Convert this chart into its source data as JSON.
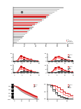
{
  "n_bars": 24,
  "bar_gray": [
    9.2,
    8.5,
    8.0,
    7.6,
    7.2,
    6.8,
    6.4,
    6.0,
    5.6,
    5.2,
    4.8,
    4.4,
    4.0,
    3.7,
    3.4,
    3.1,
    2.8,
    2.5,
    2.2,
    1.9,
    1.6,
    1.3,
    1.0,
    0.7
  ],
  "bar_red": [
    0,
    0,
    0,
    0,
    0,
    6.5,
    6.0,
    0,
    5.3,
    0,
    4.5,
    4.0,
    3.5,
    0,
    3.0,
    0,
    2.5,
    0,
    0,
    0,
    0,
    0,
    0,
    0
  ],
  "bar_diamond_idx": [
    3
  ],
  "bar_diamond_val": [
    1.5
  ],
  "line_days": [
    0,
    2,
    4,
    6,
    8,
    10,
    12,
    14
  ],
  "line1_red": [
    0.05,
    1.0,
    7.5,
    5.5,
    3.8,
    2.2,
    1.2,
    0.6
  ],
  "line1_pink": [
    0.05,
    0.7,
    4.5,
    3.5,
    2.5,
    1.6,
    1.0,
    0.5
  ],
  "line1_black": [
    0.05,
    0.2,
    0.7,
    1.4,
    1.1,
    0.8,
    0.5,
    0.25
  ],
  "line1_gray": [
    0.05,
    0.15,
    0.45,
    0.85,
    0.75,
    0.55,
    0.35,
    0.18
  ],
  "line2_red": [
    0.05,
    0.7,
    5.0,
    6.5,
    4.8,
    2.8,
    1.6,
    0.8
  ],
  "line2_pink": [
    0.05,
    0.5,
    3.5,
    5.0,
    3.7,
    2.2,
    1.3,
    0.65
  ],
  "line2_black": [
    0.05,
    0.18,
    0.55,
    1.1,
    1.6,
    1.35,
    0.9,
    0.45
  ],
  "line2_gray": [
    0.05,
    0.13,
    0.38,
    0.72,
    1.1,
    0.9,
    0.62,
    0.3
  ],
  "line3_red": [
    0.05,
    1.3,
    8.5,
    6.5,
    4.5,
    2.7,
    1.6,
    0.8
  ],
  "line3_pink": [
    0.05,
    0.9,
    5.5,
    4.6,
    3.2,
    2.0,
    1.2,
    0.6
  ],
  "line3_black": [
    0.05,
    0.22,
    0.9,
    1.85,
    1.5,
    1.0,
    0.65,
    0.32
  ],
  "line3_gray": [
    0.05,
    0.16,
    0.55,
    1.0,
    0.88,
    0.65,
    0.42,
    0.2
  ],
  "line4_red": [
    0.05,
    0.9,
    6.5,
    8.0,
    5.5,
    3.2,
    1.85,
    0.92
  ],
  "line4_pink": [
    0.05,
    0.62,
    4.6,
    6.0,
    4.2,
    2.6,
    1.5,
    0.75
  ],
  "line4_black": [
    0.05,
    0.2,
    0.65,
    1.4,
    2.05,
    1.65,
    1.1,
    0.55
  ],
  "line4_gray": [
    0.05,
    0.14,
    0.42,
    0.88,
    1.4,
    1.1,
    0.75,
    0.37
  ],
  "scatter_x": [
    0,
    2,
    5,
    7,
    10,
    15,
    20,
    25,
    30
  ],
  "scatter_red_lines": [
    [
      1000,
      800,
      400,
      180,
      60,
      15,
      4,
      1,
      0.4
    ],
    [
      1000,
      850,
      480,
      220,
      80,
      22,
      6,
      1.5,
      0.5
    ],
    [
      1000,
      780,
      360,
      150,
      48,
      11,
      3,
      0.8,
      0.3
    ],
    [
      1000,
      900,
      550,
      280,
      100,
      28,
      8,
      2,
      0.6
    ],
    [
      1000,
      820,
      420,
      190,
      65,
      18,
      5,
      1.2,
      0.4
    ]
  ],
  "scatter_pink_lines": [
    [
      1000,
      750,
      320,
      130,
      40,
      9,
      2.5,
      0.7,
      0.25
    ],
    [
      1000,
      700,
      280,
      110,
      32,
      7,
      2,
      0.55,
      0.2
    ],
    [
      1000,
      680,
      260,
      100,
      28,
      6,
      1.8,
      0.5,
      0.18
    ]
  ],
  "scatter_gray_lines": [
    [
      1000,
      600,
      200,
      70,
      20,
      4,
      1.2,
      0.35,
      0.12
    ],
    [
      1000,
      580,
      190,
      65,
      18,
      3.5,
      1.0,
      0.3,
      0.1
    ]
  ],
  "survival_days": [
    0,
    5,
    10,
    15,
    20,
    25,
    30,
    35,
    40,
    45,
    50
  ],
  "survival_red": [
    1.0,
    1.0,
    0.95,
    0.88,
    0.78,
    0.65,
    0.52,
    0.42,
    0.35,
    0.3,
    0.28
  ],
  "survival_pink": [
    1.0,
    1.0,
    0.88,
    0.72,
    0.58,
    0.45,
    0.34,
    0.26,
    0.2,
    0.16,
    0.14
  ],
  "survival_black": [
    1.0,
    0.92,
    0.65,
    0.45,
    0.3,
    0.2,
    0.13,
    0.08,
    0.05,
    0.03,
    0.02
  ],
  "survival_gray": [
    1.0,
    0.85,
    0.55,
    0.35,
    0.22,
    0.13,
    0.08,
    0.05,
    0.03,
    0.02,
    0.01
  ],
  "col_red": "#cc0000",
  "col_pink": "#ff7777",
  "col_lpink": "#ffbbbb",
  "col_black": "#111111",
  "col_gray": "#777777",
  "col_lgray": "#bbbbbb",
  "col_bar_gray": "#bbbbbb",
  "col_bar_red": "#cc0000"
}
